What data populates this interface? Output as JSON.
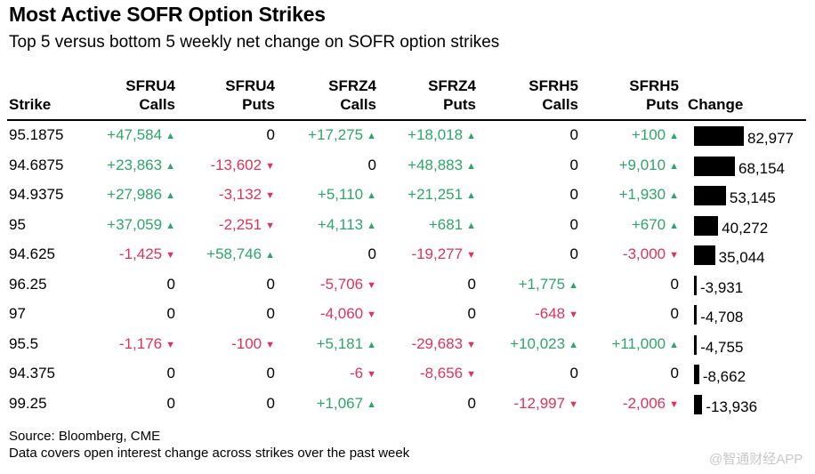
{
  "title": "Most Active SOFR Option Strikes",
  "subtitle": "Top 5 versus bottom 5 weekly net change on SOFR option strikes",
  "source": "Source: Bloomberg, CME",
  "note": "Data covers open interest change across strikes over the past week",
  "watermark": "@智通财经APP",
  "colors": {
    "positive": "#2ea66a",
    "negative": "#e0335a",
    "bar": "#000000"
  },
  "chart_data": {
    "type": "table",
    "columns": [
      {
        "key": "strike",
        "label1": "",
        "label2": "Strike"
      },
      {
        "key": "sfru4_calls",
        "label1": "SFRU4",
        "label2": "Calls"
      },
      {
        "key": "sfru4_puts",
        "label1": "SFRU4",
        "label2": "Puts"
      },
      {
        "key": "sfrz4_calls",
        "label1": "SFRZ4",
        "label2": "Calls"
      },
      {
        "key": "sfrz4_puts",
        "label1": "SFRZ4",
        "label2": "Puts"
      },
      {
        "key": "sfrh5_calls",
        "label1": "SFRH5",
        "label2": "Calls"
      },
      {
        "key": "sfrh5_puts",
        "label1": "SFRH5",
        "label2": "Puts"
      },
      {
        "key": "change",
        "label1": "",
        "label2": "Change"
      }
    ],
    "rows": [
      {
        "strike": "95.1875",
        "values": [
          47584,
          0,
          17275,
          18018,
          0,
          100
        ],
        "change": 82977
      },
      {
        "strike": "94.6875",
        "values": [
          23863,
          -13602,
          0,
          48883,
          0,
          9010
        ],
        "change": 68154
      },
      {
        "strike": "94.9375",
        "values": [
          27986,
          -3132,
          5110,
          21251,
          0,
          1930
        ],
        "change": 53145
      },
      {
        "strike": "95",
        "values": [
          37059,
          -2251,
          4113,
          681,
          0,
          670
        ],
        "change": 40272
      },
      {
        "strike": "94.625",
        "values": [
          -1425,
          58746,
          0,
          -19277,
          0,
          -3000
        ],
        "change": 35044
      },
      {
        "strike": "96.25",
        "values": [
          0,
          0,
          -5706,
          0,
          1775,
          0
        ],
        "change": -3931
      },
      {
        "strike": "97",
        "values": [
          0,
          0,
          -4060,
          0,
          -648,
          0
        ],
        "change": -4708
      },
      {
        "strike": "95.5",
        "values": [
          -1176,
          -100,
          5181,
          -29683,
          10023,
          11000
        ],
        "change": -4755
      },
      {
        "strike": "94.375",
        "values": [
          0,
          0,
          -6,
          -8656,
          0,
          0
        ],
        "change": -8662
      },
      {
        "strike": "99.25",
        "values": [
          0,
          0,
          1067,
          0,
          -12997,
          -2006
        ],
        "change": -13936
      }
    ]
  }
}
